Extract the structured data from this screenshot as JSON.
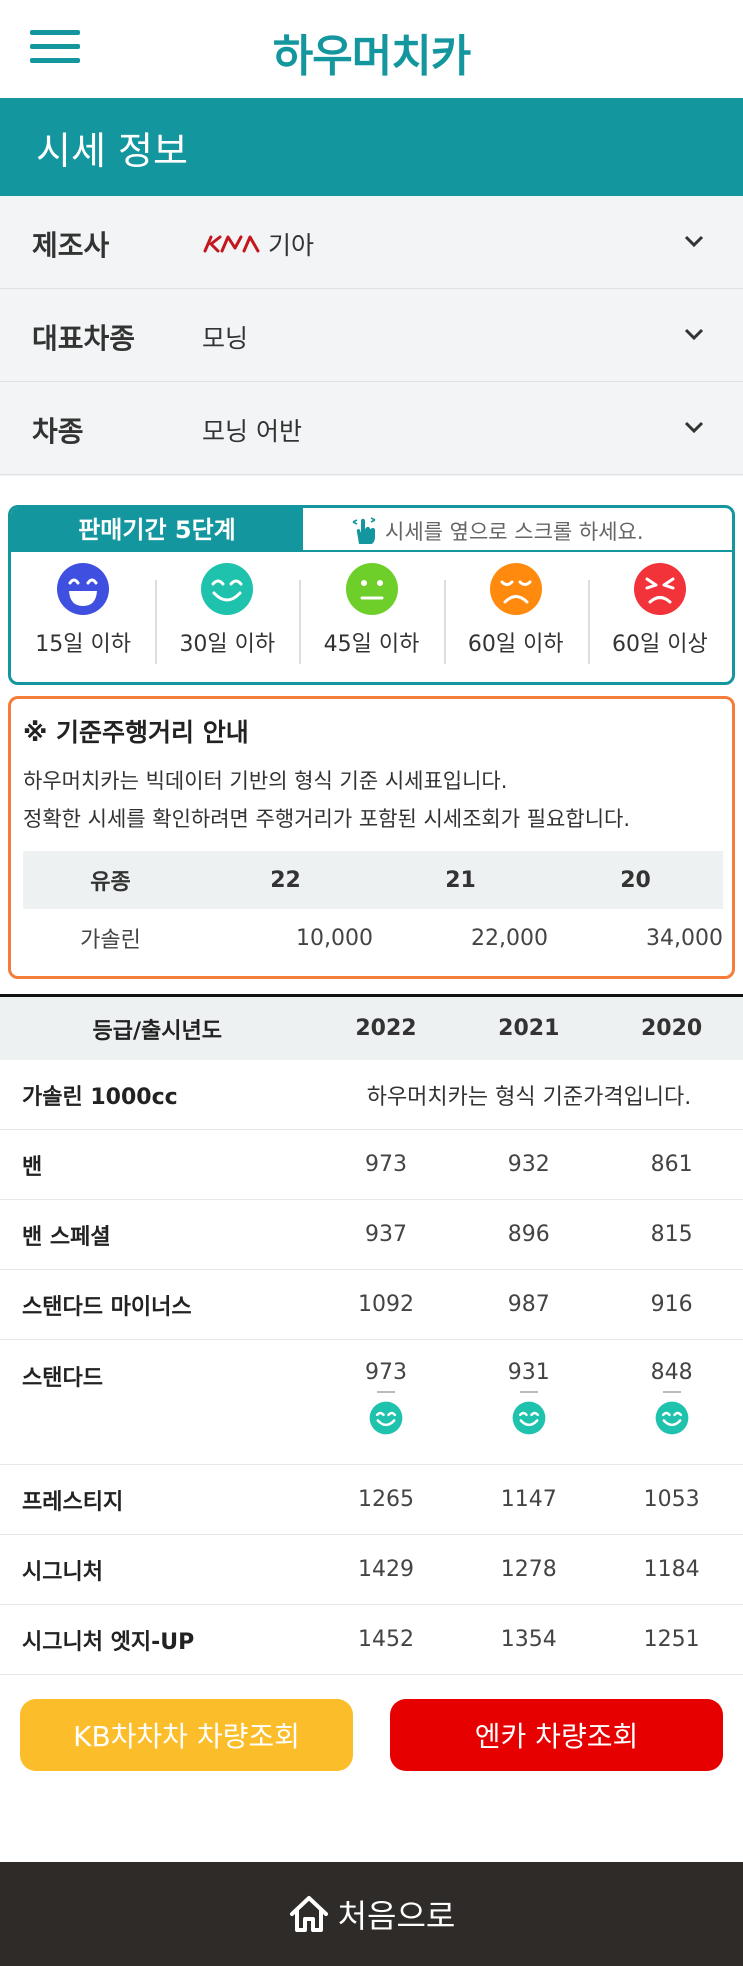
{
  "header": {
    "logo": "하우머치카"
  },
  "title": "시세 정보",
  "selectors": [
    {
      "label": "제조사",
      "value": "기아",
      "brand_logo": "kia-logo-icon"
    },
    {
      "label": "대표차종",
      "value": "모닝"
    },
    {
      "label": "차종",
      "value": "모닝 어반"
    }
  ],
  "stage": {
    "title": "판매기간 5단계",
    "hint": "시세를 옆으로 스크롤 하세요.",
    "levels": [
      {
        "label": "15일 이하",
        "color": "#3f4fe0",
        "face": "very-happy"
      },
      {
        "label": "30일 이하",
        "color": "#1ec2ad",
        "face": "happy"
      },
      {
        "label": "45일 이하",
        "color": "#6fcf2a",
        "face": "neutral"
      },
      {
        "label": "60일 이하",
        "color": "#ff8a0d",
        "face": "sad"
      },
      {
        "label": "60일 이상",
        "color": "#f2333a",
        "face": "angry"
      }
    ]
  },
  "notice": {
    "title": "※ 기준주행거리 안내",
    "line1": "하우머치카는 빅데이터 기반의 형식 기준 시세표입니다.",
    "line2": "정확한 시세를 확인하려면 주행거리가 포함된 시세조회가 필요합니다.",
    "table": {
      "headers": [
        "유종",
        "22",
        "21",
        "20"
      ],
      "row": [
        "가솔린",
        "10,000",
        "22,000",
        "34,000"
      ]
    }
  },
  "prices": {
    "headers": [
      "등급/출시년도",
      "2022",
      "2021",
      "2020"
    ],
    "section": {
      "label": "가솔린 1000cc",
      "note": "하우머치카는 형식 기준가격입니다."
    },
    "rows": [
      {
        "name": "밴",
        "values": [
          "973",
          "932",
          "861"
        ]
      },
      {
        "name": "밴 스페셜",
        "values": [
          "937",
          "896",
          "815"
        ]
      },
      {
        "name": "스탠다드 마이너스",
        "values": [
          "1092",
          "987",
          "916"
        ]
      },
      {
        "name": "스탠다드",
        "values": [
          "973",
          "931",
          "848"
        ],
        "indicator": "happy"
      },
      {
        "name": "프레스티지",
        "values": [
          "1265",
          "1147",
          "1053"
        ]
      },
      {
        "name": "시그니처",
        "values": [
          "1429",
          "1278",
          "1184"
        ]
      },
      {
        "name": "시그니처 엣지-UP",
        "values": [
          "1452",
          "1354",
          "1251"
        ]
      }
    ]
  },
  "buttons": {
    "kb": "KB차차차 차량조회",
    "encar": "엔카 차량조회"
  },
  "footer": {
    "label": "처음으로"
  },
  "colors": {
    "brand": "#14969e",
    "notice_border": "#f47d3a",
    "kb": "#fbbd2a",
    "encar": "#e60000",
    "footer": "#2e2b28"
  }
}
